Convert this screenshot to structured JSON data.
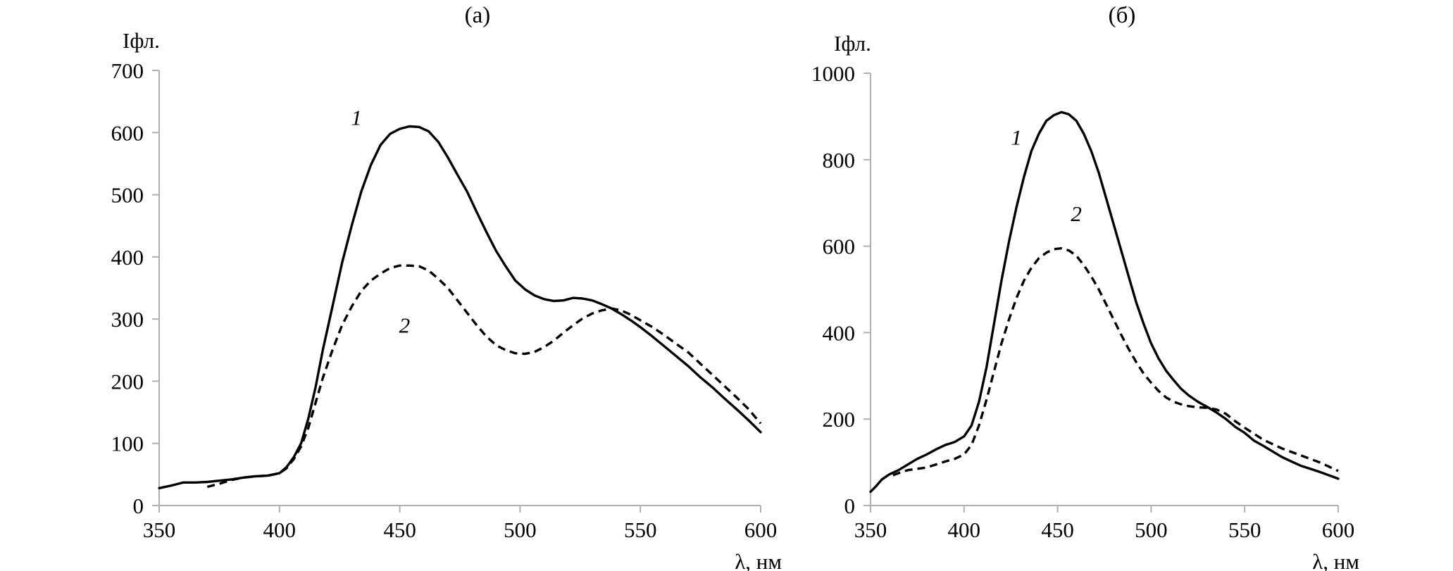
{
  "chart_data": [
    {
      "type": "line",
      "panel_label": "(а)",
      "ylabel": "Iфл.",
      "xlabel": "λ, нм",
      "xlim": [
        350,
        600
      ],
      "ylim": [
        0,
        700
      ],
      "xticks": [
        350,
        400,
        450,
        500,
        550,
        600
      ],
      "yticks": [
        0,
        100,
        200,
        300,
        400,
        500,
        600,
        700
      ],
      "grid": false,
      "series": [
        {
          "name": "1",
          "style": "solid",
          "label_at": [
            432,
            612
          ],
          "points": [
            [
              350,
              28
            ],
            [
              355,
              32
            ],
            [
              360,
              37
            ],
            [
              365,
              37
            ],
            [
              370,
              38
            ],
            [
              375,
              40
            ],
            [
              380,
              42
            ],
            [
              385,
              45
            ],
            [
              390,
              47
            ],
            [
              395,
              48
            ],
            [
              400,
              52
            ],
            [
              403,
              62
            ],
            [
              406,
              78
            ],
            [
              409,
              100
            ],
            [
              412,
              140
            ],
            [
              415,
              190
            ],
            [
              418,
              250
            ],
            [
              422,
              320
            ],
            [
              426,
              390
            ],
            [
              430,
              450
            ],
            [
              434,
              505
            ],
            [
              438,
              548
            ],
            [
              442,
              580
            ],
            [
              446,
              598
            ],
            [
              450,
              606
            ],
            [
              454,
              610
            ],
            [
              458,
              609
            ],
            [
              462,
              602
            ],
            [
              466,
              585
            ],
            [
              470,
              560
            ],
            [
              474,
              532
            ],
            [
              478,
              505
            ],
            [
              482,
              472
            ],
            [
              486,
              440
            ],
            [
              490,
              410
            ],
            [
              494,
              385
            ],
            [
              498,
              362
            ],
            [
              502,
              348
            ],
            [
              506,
              338
            ],
            [
              510,
              332
            ],
            [
              514,
              329
            ],
            [
              518,
              330
            ],
            [
              522,
              334
            ],
            [
              526,
              333
            ],
            [
              530,
              330
            ],
            [
              534,
              324
            ],
            [
              538,
              317
            ],
            [
              542,
              308
            ],
            [
              546,
              298
            ],
            [
              550,
              287
            ],
            [
              555,
              272
            ],
            [
              560,
              256
            ],
            [
              565,
              240
            ],
            [
              570,
              224
            ],
            [
              575,
              206
            ],
            [
              580,
              190
            ],
            [
              585,
              172
            ],
            [
              590,
              155
            ],
            [
              595,
              137
            ],
            [
              600,
              118
            ]
          ]
        },
        {
          "name": "2",
          "style": "dashed",
          "label_at": [
            452,
            278
          ],
          "points": [
            [
              370,
              30
            ],
            [
              375,
              35
            ],
            [
              380,
              41
            ],
            [
              385,
              45
            ],
            [
              390,
              47
            ],
            [
              395,
              48
            ],
            [
              400,
              52
            ],
            [
              403,
              60
            ],
            [
              406,
              75
            ],
            [
              409,
              95
            ],
            [
              412,
              125
            ],
            [
              415,
              165
            ],
            [
              418,
              205
            ],
            [
              422,
              250
            ],
            [
              426,
              290
            ],
            [
              430,
              320
            ],
            [
              434,
              345
            ],
            [
              438,
              362
            ],
            [
              442,
              373
            ],
            [
              446,
              382
            ],
            [
              450,
              386
            ],
            [
              454,
              386
            ],
            [
              458,
              385
            ],
            [
              462,
              378
            ],
            [
              466,
              365
            ],
            [
              470,
              350
            ],
            [
              474,
              330
            ],
            [
              478,
              310
            ],
            [
              482,
              290
            ],
            [
              486,
              272
            ],
            [
              490,
              258
            ],
            [
              494,
              250
            ],
            [
              498,
              245
            ],
            [
              502,
              244
            ],
            [
              506,
              247
            ],
            [
              510,
              255
            ],
            [
              514,
              265
            ],
            [
              518,
              278
            ],
            [
              522,
              290
            ],
            [
              526,
              301
            ],
            [
              530,
              309
            ],
            [
              534,
              314
            ],
            [
              538,
              317
            ],
            [
              542,
              314
            ],
            [
              546,
              307
            ],
            [
              550,
              298
            ],
            [
              555,
              287
            ],
            [
              560,
              274
            ],
            [
              565,
              260
            ],
            [
              570,
              246
            ],
            [
              575,
              228
            ],
            [
              580,
              210
            ],
            [
              585,
              192
            ],
            [
              590,
              174
            ],
            [
              595,
              155
            ],
            [
              600,
              132
            ]
          ]
        }
      ]
    },
    {
      "type": "line",
      "panel_label": "(б)",
      "ylabel": "Iфл.",
      "xlabel": "λ, нм",
      "xlim": [
        350,
        600
      ],
      "ylim": [
        0,
        1000
      ],
      "xticks": [
        350,
        400,
        450,
        500,
        550,
        600
      ],
      "yticks": [
        0,
        200,
        400,
        600,
        800,
        1000
      ],
      "grid": false,
      "series": [
        {
          "name": "1",
          "style": "solid",
          "label_at": [
            428,
            835
          ],
          "points": [
            [
              350,
              32
            ],
            [
              353,
              45
            ],
            [
              356,
              60
            ],
            [
              360,
              72
            ],
            [
              365,
              82
            ],
            [
              370,
              95
            ],
            [
              375,
              108
            ],
            [
              380,
              118
            ],
            [
              385,
              130
            ],
            [
              390,
              140
            ],
            [
              395,
              147
            ],
            [
              400,
              160
            ],
            [
              404,
              185
            ],
            [
              408,
              240
            ],
            [
              412,
              320
            ],
            [
              416,
              420
            ],
            [
              420,
              520
            ],
            [
              424,
              610
            ],
            [
              428,
              690
            ],
            [
              432,
              760
            ],
            [
              436,
              820
            ],
            [
              440,
              860
            ],
            [
              444,
              890
            ],
            [
              448,
              903
            ],
            [
              452,
              910
            ],
            [
              456,
              905
            ],
            [
              460,
              890
            ],
            [
              464,
              860
            ],
            [
              468,
              820
            ],
            [
              472,
              770
            ],
            [
              476,
              710
            ],
            [
              480,
              650
            ],
            [
              484,
              590
            ],
            [
              488,
              530
            ],
            [
              492,
              470
            ],
            [
              496,
              420
            ],
            [
              500,
              375
            ],
            [
              504,
              340
            ],
            [
              508,
              312
            ],
            [
              512,
              290
            ],
            [
              516,
              270
            ],
            [
              520,
              255
            ],
            [
              525,
              240
            ],
            [
              530,
              228
            ],
            [
              535,
              215
            ],
            [
              540,
              200
            ],
            [
              545,
              182
            ],
            [
              550,
              168
            ],
            [
              555,
              150
            ],
            [
              560,
              138
            ],
            [
              565,
              125
            ],
            [
              570,
              112
            ],
            [
              575,
              102
            ],
            [
              580,
              92
            ],
            [
              585,
              85
            ],
            [
              590,
              78
            ],
            [
              595,
              70
            ],
            [
              600,
              62
            ]
          ]
        },
        {
          "name": "2",
          "style": "dashed",
          "label_at": [
            460,
            658
          ],
          "points": [
            [
              362,
              70
            ],
            [
              365,
              75
            ],
            [
              370,
              82
            ],
            [
              375,
              85
            ],
            [
              380,
              88
            ],
            [
              385,
              95
            ],
            [
              390,
              102
            ],
            [
              395,
              108
            ],
            [
              400,
              118
            ],
            [
              404,
              140
            ],
            [
              408,
              185
            ],
            [
              412,
              245
            ],
            [
              416,
              310
            ],
            [
              420,
              375
            ],
            [
              424,
              430
            ],
            [
              428,
              480
            ],
            [
              432,
              520
            ],
            [
              436,
              550
            ],
            [
              440,
              572
            ],
            [
              444,
              585
            ],
            [
              448,
              593
            ],
            [
              452,
              595
            ],
            [
              456,
              590
            ],
            [
              460,
              578
            ],
            [
              464,
              556
            ],
            [
              468,
              530
            ],
            [
              472,
              500
            ],
            [
              476,
              465
            ],
            [
              480,
              430
            ],
            [
              484,
              395
            ],
            [
              488,
              362
            ],
            [
              492,
              332
            ],
            [
              496,
              305
            ],
            [
              500,
              284
            ],
            [
              504,
              265
            ],
            [
              508,
              250
            ],
            [
              512,
              240
            ],
            [
              516,
              234
            ],
            [
              520,
              230
            ],
            [
              525,
              227
            ],
            [
              530,
              226
            ],
            [
              535,
              222
            ],
            [
              540,
              212
            ],
            [
              545,
              195
            ],
            [
              550,
              180
            ],
            [
              555,
              166
            ],
            [
              560,
              152
            ],
            [
              565,
              142
            ],
            [
              570,
              132
            ],
            [
              575,
              124
            ],
            [
              580,
              116
            ],
            [
              585,
              108
            ],
            [
              590,
              100
            ],
            [
              595,
              90
            ],
            [
              600,
              80
            ]
          ]
        }
      ]
    }
  ]
}
